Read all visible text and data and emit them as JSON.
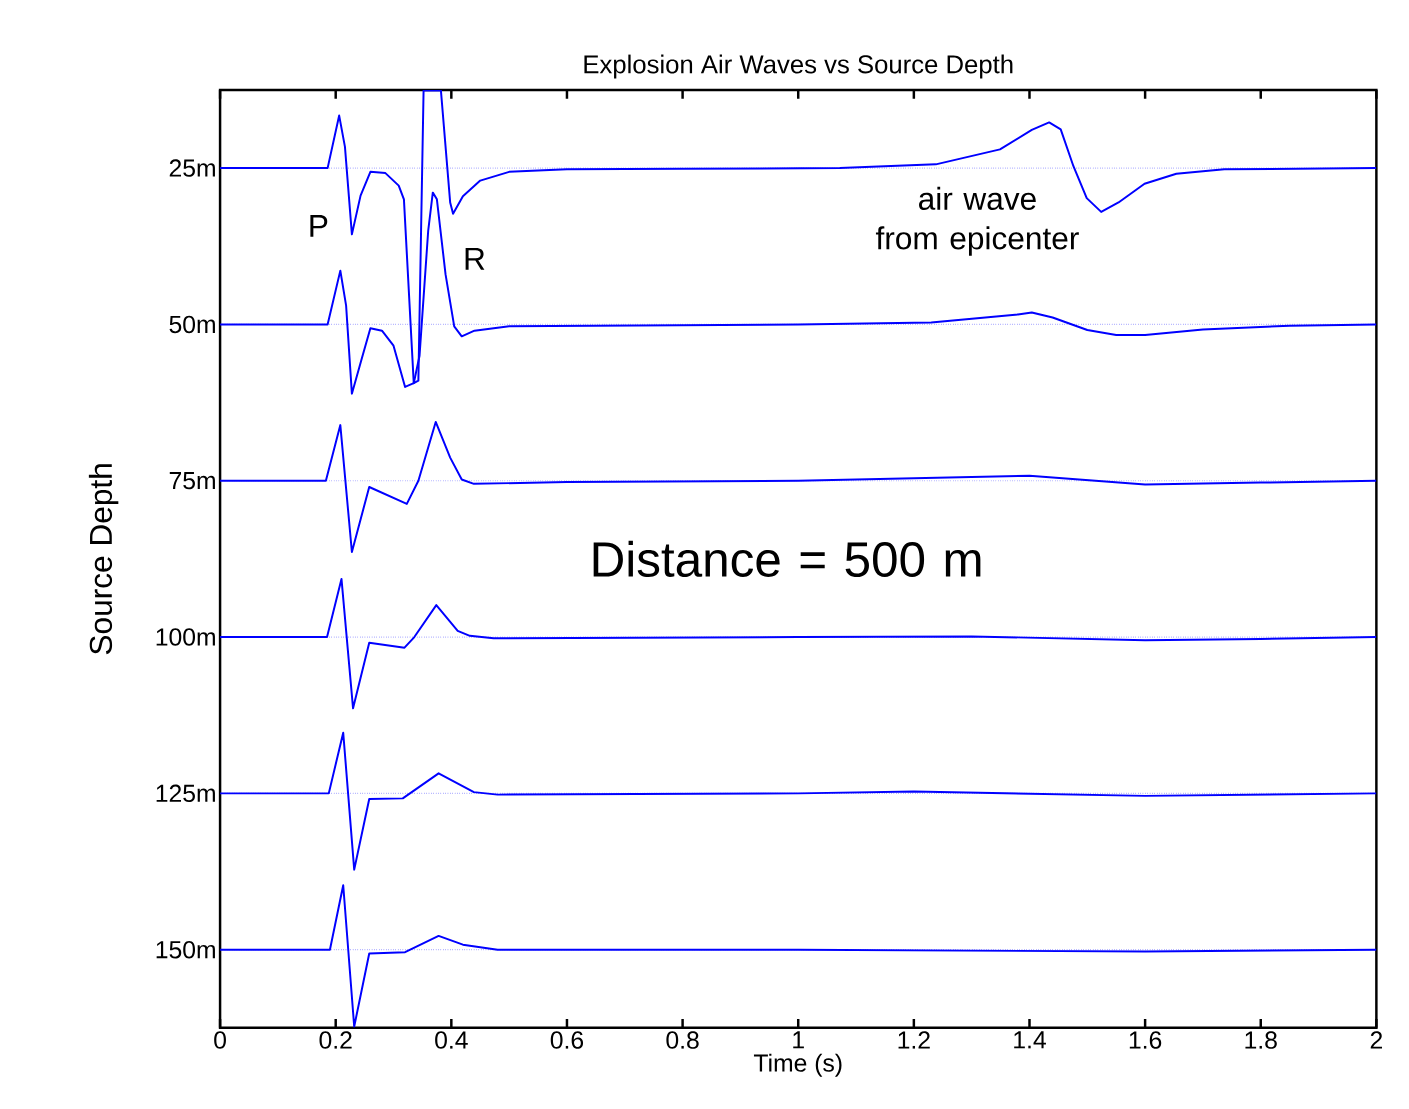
{
  "chart_data": {
    "type": "line",
    "title": "Explosion Air Waves vs Source Depth",
    "xlabel": "Time (s)",
    "ylabel": "Source Depth",
    "annotations": [
      "P",
      "R",
      "air wave\nfrom epicenter",
      "Distance = 500 m"
    ],
    "xlim": [
      0,
      2
    ],
    "xticks": [
      0,
      0.2,
      0.4,
      0.6,
      0.8,
      1,
      1.2,
      1.4,
      1.6,
      1.8,
      2
    ],
    "ylim": [
      162.5,
      12.5
    ],
    "yticks": [
      {
        "value": 25,
        "label": "25m"
      },
      {
        "value": 50,
        "label": "50m"
      },
      {
        "value": 75,
        "label": "75m"
      },
      {
        "value": 100,
        "label": "100m"
      },
      {
        "value": 125,
        "label": "125m"
      },
      {
        "value": 150,
        "label": "150m"
      }
    ],
    "grid": "y",
    "line_style": "solid",
    "marker": "none",
    "series": [
      {
        "color": "#0000ff",
        "x": [
          0,
          0.186,
          0.206,
          0.216,
          0.228,
          0.243,
          0.26,
          0.286,
          0.309,
          0.318,
          0.335,
          0.343,
          0.352,
          0.382,
          0.398,
          0.403,
          0.42,
          0.45,
          0.5,
          0.6,
          0.8,
          1.072,
          1.238,
          1.349,
          1.404,
          1.434,
          1.454,
          1.476,
          1.499,
          1.524,
          1.554,
          1.599,
          1.654,
          1.737,
          2
        ],
        "values": [
          25,
          25,
          16.6,
          21.6,
          35.6,
          29.4,
          25.6,
          25.8,
          27.8,
          30,
          59.4,
          59,
          12.6,
          12.6,
          30.5,
          32.3,
          29.5,
          27,
          25.6,
          25.2,
          25.1,
          25,
          24.4,
          22,
          18.9,
          17.7,
          18.8,
          24.7,
          29.8,
          32,
          30.5,
          27.5,
          25.9,
          25.2,
          25
        ]
      },
      {
        "color": "#0000ff",
        "x": [
          0,
          0.186,
          0.208,
          0.218,
          0.228,
          0.245,
          0.26,
          0.28,
          0.3,
          0.32,
          0.335,
          0.345,
          0.36,
          0.368,
          0.375,
          0.39,
          0.405,
          0.418,
          0.44,
          0.5,
          1,
          1.23,
          1.38,
          1.404,
          1.44,
          1.5,
          1.55,
          1.6,
          1.7,
          1.85,
          2
        ],
        "values": [
          50,
          50,
          41.4,
          47,
          61.1,
          55.5,
          50.6,
          51,
          53.4,
          60,
          59.4,
          55,
          35,
          28.9,
          30,
          42,
          50.3,
          51.9,
          51,
          50.3,
          50,
          49.7,
          48.4,
          48.1,
          48.9,
          50.9,
          51.7,
          51.7,
          50.8,
          50.2,
          50
        ]
      },
      {
        "color": "#0000ff",
        "x": [
          0,
          0.183,
          0.208,
          0.228,
          0.258,
          0.323,
          0.343,
          0.373,
          0.398,
          0.418,
          0.439,
          0.6,
          1,
          1.4,
          1.6,
          1.8,
          2
        ],
        "values": [
          75,
          75,
          66.1,
          86.4,
          76,
          78.7,
          75,
          65.6,
          71.3,
          74.8,
          75.5,
          75.2,
          75,
          74.2,
          75.6,
          75.3,
          75
        ]
      },
      {
        "color": "#0000ff",
        "x": [
          0,
          0.185,
          0.21,
          0.23,
          0.258,
          0.319,
          0.336,
          0.374,
          0.411,
          0.432,
          0.473,
          1,
          1.3,
          1.6,
          1.8,
          2
        ],
        "values": [
          100,
          100,
          90.7,
          111.4,
          100.9,
          101.7,
          100,
          94.9,
          99,
          99.8,
          100.2,
          100,
          99.9,
          100.5,
          100.3,
          100
        ]
      },
      {
        "color": "#0000ff",
        "x": [
          0,
          0.188,
          0.213,
          0.232,
          0.258,
          0.316,
          0.378,
          0.439,
          0.48,
          1,
          1.2,
          1.6,
          2
        ],
        "values": [
          125,
          125,
          115.3,
          137.2,
          125.9,
          125.8,
          121.8,
          124.8,
          125.2,
          125,
          124.7,
          125.4,
          125
        ]
      },
      {
        "color": "#0000ff",
        "x": [
          0,
          0.19,
          0.213,
          0.232,
          0.258,
          0.32,
          0.378,
          0.42,
          0.48,
          1,
          1.6,
          2
        ],
        "values": [
          150,
          150,
          139.7,
          162.3,
          150.6,
          150.4,
          147.8,
          149.2,
          150,
          150,
          150.3,
          150
        ]
      }
    ]
  }
}
